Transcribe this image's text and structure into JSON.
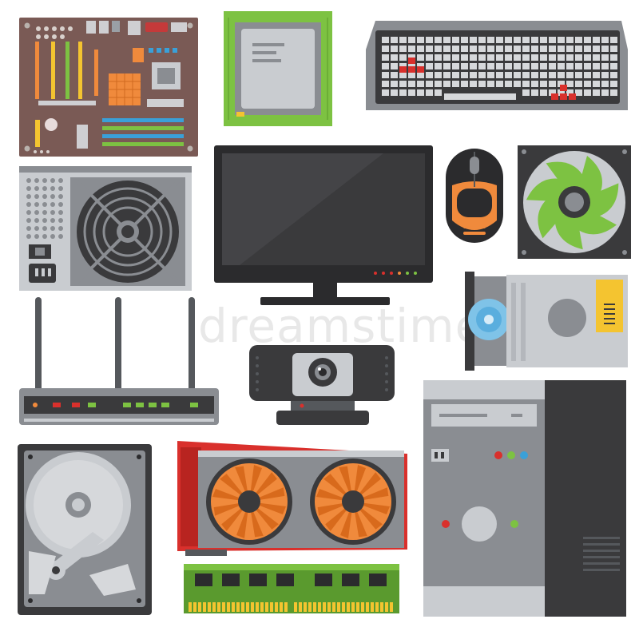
{
  "watermark": "dreamstime",
  "items": [
    {
      "id": "motherboard",
      "icon": "motherboard-icon"
    },
    {
      "id": "cpu",
      "icon": "cpu-icon"
    },
    {
      "id": "keyboard",
      "icon": "keyboard-icon"
    },
    {
      "id": "power-supply",
      "icon": "power-supply-icon"
    },
    {
      "id": "monitor",
      "icon": "monitor-icon"
    },
    {
      "id": "mouse",
      "icon": "mouse-icon"
    },
    {
      "id": "case-fan",
      "icon": "case-fan-icon"
    },
    {
      "id": "optical-drive",
      "icon": "optical-drive-icon"
    },
    {
      "id": "router",
      "icon": "router-icon"
    },
    {
      "id": "webcam",
      "icon": "webcam-icon"
    },
    {
      "id": "pc-tower",
      "icon": "pc-tower-icon"
    },
    {
      "id": "hard-drive",
      "icon": "hard-drive-icon"
    },
    {
      "id": "graphics-card",
      "icon": "graphics-card-icon"
    },
    {
      "id": "ram-stick",
      "icon": "ram-stick-icon"
    }
  ],
  "colors": {
    "board": "#7a5a55",
    "dark": "#3a3a3c",
    "gray": "#8a8d92",
    "light_gray": "#c9ccd0",
    "green": "#7dc242",
    "orange": "#f08a3c",
    "red": "#d9302c",
    "yellow": "#f4c430",
    "blue": "#3aa0d8"
  }
}
